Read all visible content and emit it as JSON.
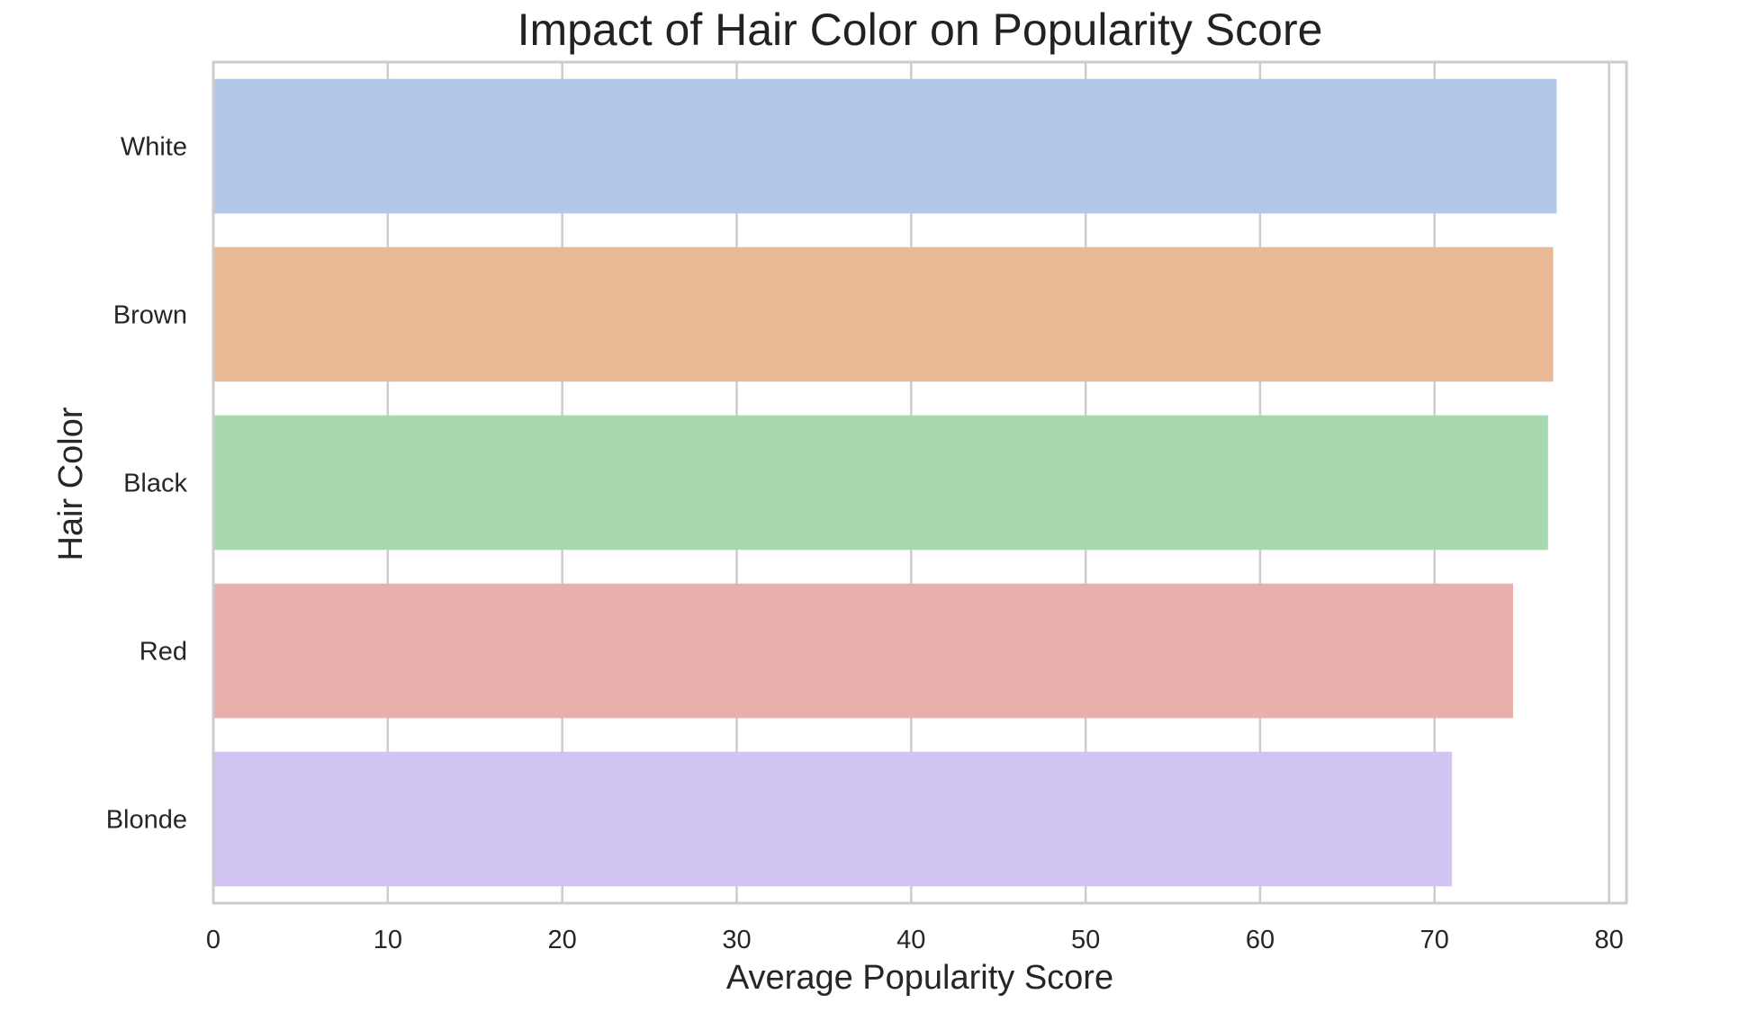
{
  "chart_data": {
    "type": "bar",
    "orientation": "horizontal",
    "title": "Impact of Hair Color on Popularity Score",
    "xlabel": "Average Popularity Score",
    "ylabel": "Hair Color",
    "categories": [
      "White",
      "Brown",
      "Black",
      "Red",
      "Blonde"
    ],
    "values": [
      77.0,
      76.8,
      76.5,
      74.5,
      71.0
    ],
    "colors": [
      "#b2c8e8",
      "#e8b994",
      "#a8d8ad",
      "#e8afab",
      "#d1c4f2"
    ],
    "xlim": [
      0,
      81
    ],
    "xticks": [
      0,
      10,
      20,
      30,
      40,
      50,
      60,
      70,
      80
    ],
    "grid": "vertical",
    "legend": "none"
  }
}
